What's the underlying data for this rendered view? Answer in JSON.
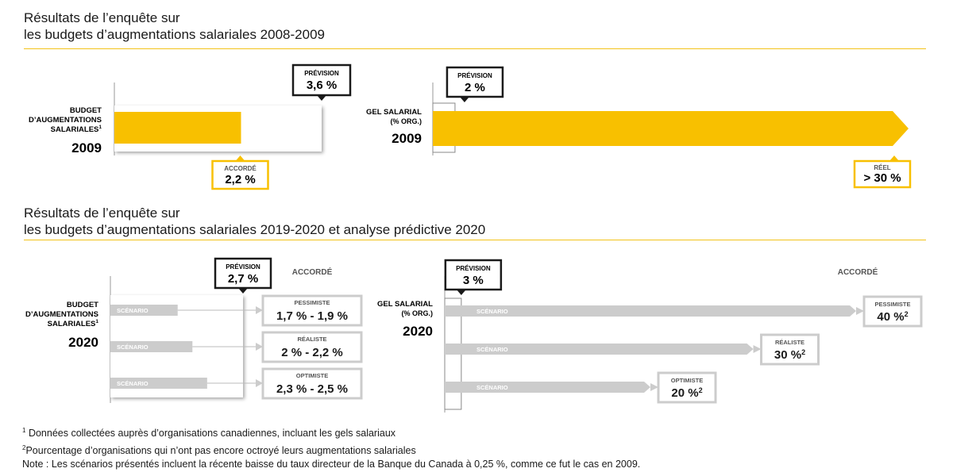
{
  "section_2009": {
    "title_line1": "Résultats de l’enquête sur",
    "title_line2": "les budgets d’augmentations salariales 2008-2009"
  },
  "section_2020": {
    "title_line1": "Résultats de l’enquête sur",
    "title_line2": "les budgets d’augmentations salariales 2019-2020 et analyse prédictive 2020"
  },
  "labels": {
    "budget_line1": "BUDGET",
    "budget_line2": "D’AUGMENTATIONS",
    "budget_line3": "SALARIALES",
    "budget_sup": "1",
    "freeze_line1": "GEL SALARIAL",
    "freeze_line2": "(% ORG.)",
    "year_2009": "2009",
    "year_2020": "2020",
    "prevision": "PRÉVISION",
    "accorde": "ACCORDÉ",
    "reel": "RÉEL",
    "scenario": "SCÉNARIO",
    "sup2": "2"
  },
  "chart_data": [
    {
      "type": "bar",
      "id": "budget-2009",
      "categories": [
        "2009"
      ],
      "series": [
        {
          "name": "PRÉVISION",
          "values": [
            3.6
          ],
          "label": "3,6 %"
        },
        {
          "name": "ACCORDÉ",
          "values": [
            2.2
          ],
          "label": "2,2 %"
        }
      ],
      "xlim": [
        0,
        3.9
      ]
    },
    {
      "type": "bar",
      "id": "freeze-2009",
      "categories": [
        "2009"
      ],
      "series": [
        {
          "name": "PRÉVISION",
          "values": [
            2
          ],
          "label": "2 %"
        },
        {
          "name": "RÉEL",
          "values": [
            30
          ],
          "label": "> 30 %"
        }
      ],
      "xlim": [
        0,
        30
      ]
    },
    {
      "type": "bar",
      "id": "budget-2020",
      "prevision": {
        "value": 2.7,
        "label": "2,7 %"
      },
      "categories": [
        "PESSIMISTE",
        "RÉALISTE",
        "OPTIMISTE"
      ],
      "series": [
        {
          "name": "ACCORDÉ",
          "low": [
            1.7,
            2.0,
            2.3
          ],
          "high": [
            1.9,
            2.2,
            2.5
          ],
          "labels": [
            "1,7 % - 1,9 %",
            "2 % - 2,2 %",
            "2,3 % - 2,5 %"
          ]
        }
      ],
      "xlim": [
        0,
        2.7
      ]
    },
    {
      "type": "bar",
      "id": "freeze-2020",
      "prevision": {
        "value": 3,
        "label": "3 %"
      },
      "categories": [
        "PESSIMISTE",
        "RÉALISTE",
        "OPTIMISTE"
      ],
      "series": [
        {
          "name": "ACCORDÉ",
          "values": [
            40,
            30,
            20
          ],
          "labels": [
            "40 %",
            "30 %",
            "20 %"
          ]
        }
      ],
      "xlim": [
        0,
        40
      ]
    }
  ],
  "footnotes": {
    "note1_sup": "1",
    "note1": "Données collectées auprès d’organisations canadiennes, incluant les gels salariaux",
    "note2_sup": "2",
    "note2": "Pourcentage d’organisations qui n’ont pas encore octroyé leurs augmentations salariales",
    "note3": "Note : Les scénarios présentés incluent la récente baisse du taux directeur de la Banque du Canada à 0,25 %, comme ce fut le cas en 2009."
  },
  "colors": {
    "accent": "#f8c000",
    "grey_bar": "#cccccc",
    "dark": "#1a1a1a",
    "rule": "#f3c31a"
  }
}
